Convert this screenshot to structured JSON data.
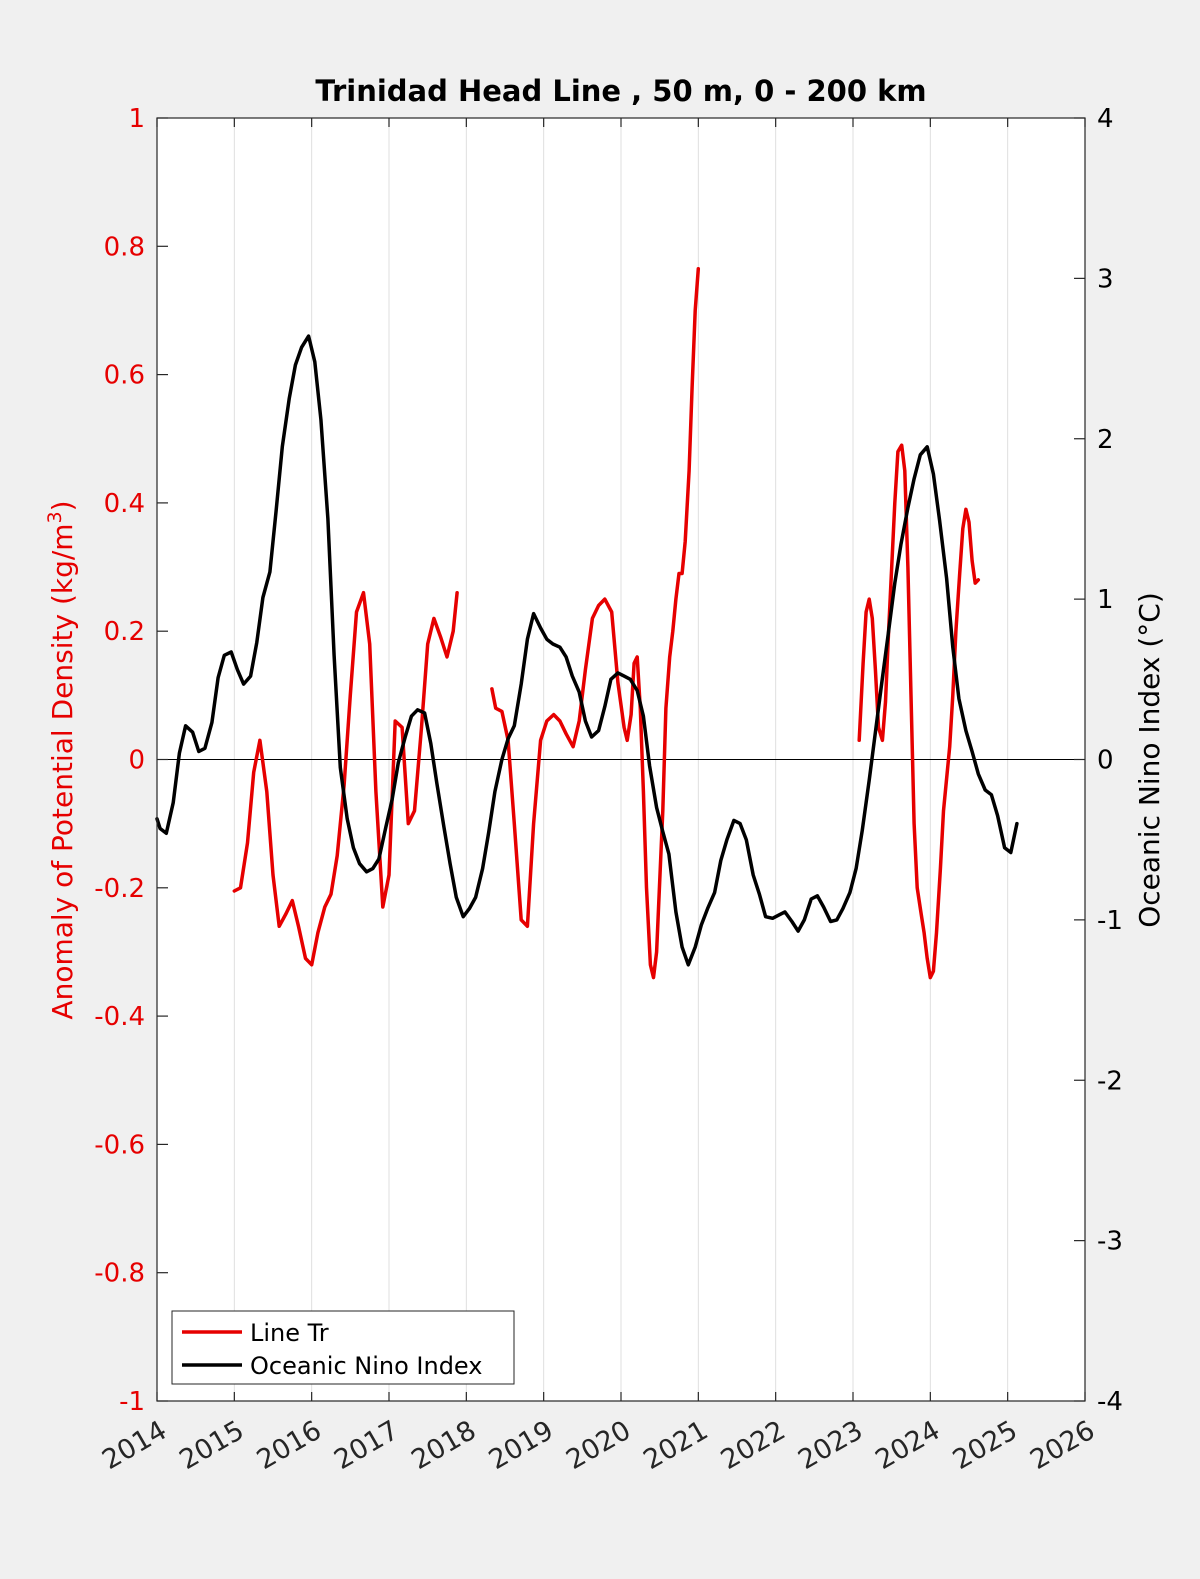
{
  "chart_data": {
    "type": "line",
    "title": "Trinidad Head Line , 50 m, 0 - 200 km",
    "xlabel": "",
    "xlim": [
      2014,
      2026
    ],
    "x_ticks": [
      "2014",
      "2015",
      "2016",
      "2017",
      "2018",
      "2019",
      "2020",
      "2021",
      "2022",
      "2023",
      "2024",
      "2025",
      "2026"
    ],
    "grid": "vertical",
    "zero_line": true,
    "left_axis": {
      "label_main": "Anomaly of Potential Density (kg/m",
      "label_sup": "3",
      "label_end": ")",
      "ylim": [
        -1,
        1
      ],
      "ticks": [
        "-1",
        "-0.8",
        "-0.6",
        "-0.4",
        "-0.2",
        "0",
        "0.2",
        "0.4",
        "0.6",
        "0.8",
        "1"
      ],
      "color": "#e60000"
    },
    "right_axis": {
      "label": "Oceanic Nino Index (°C)",
      "ylim": [
        -4,
        4
      ],
      "ticks": [
        "-4",
        "-3",
        "-2",
        "-1",
        "0",
        "1",
        "2",
        "3",
        "4"
      ],
      "color": "#000000"
    },
    "legend": {
      "placement": "bottom-left",
      "entries": [
        "Line Tr",
        "Oceanic Nino Index"
      ]
    },
    "series": [
      {
        "name": "Line Tr",
        "axis": "left",
        "color": "#e60000",
        "segments": [
          [
            [
              2015.0,
              -0.205
            ],
            [
              2015.08,
              -0.2
            ],
            [
              2015.17,
              -0.13
            ],
            [
              2015.25,
              -0.02
            ],
            [
              2015.33,
              0.03
            ],
            [
              2015.42,
              -0.05
            ],
            [
              2015.5,
              -0.18
            ],
            [
              2015.58,
              -0.26
            ],
            [
              2015.67,
              -0.24
            ],
            [
              2015.75,
              -0.22
            ],
            [
              2015.83,
              -0.26
            ],
            [
              2015.92,
              -0.31
            ],
            [
              2016.0,
              -0.32
            ],
            [
              2016.08,
              -0.27
            ],
            [
              2016.17,
              -0.23
            ],
            [
              2016.25,
              -0.21
            ],
            [
              2016.33,
              -0.15
            ],
            [
              2016.42,
              -0.04
            ],
            [
              2016.5,
              0.1
            ],
            [
              2016.58,
              0.23
            ],
            [
              2016.67,
              0.26
            ],
            [
              2016.75,
              0.18
            ],
            [
              2016.83,
              -0.05
            ],
            [
              2016.92,
              -0.23
            ],
            [
              2017.0,
              -0.18
            ],
            [
              2017.08,
              0.06
            ],
            [
              2017.17,
              0.05
            ],
            [
              2017.25,
              -0.1
            ],
            [
              2017.33,
              -0.08
            ],
            [
              2017.42,
              0.05
            ],
            [
              2017.5,
              0.18
            ],
            [
              2017.58,
              0.22
            ],
            [
              2017.67,
              0.19
            ],
            [
              2017.75,
              0.16
            ],
            [
              2017.83,
              0.2
            ],
            [
              2017.88,
              0.26
            ]
          ],
          [
            [
              2018.33,
              0.11
            ],
            [
              2018.38,
              0.08
            ],
            [
              2018.46,
              0.075
            ],
            [
              2018.54,
              0.03
            ],
            [
              2018.62,
              -0.1
            ],
            [
              2018.71,
              -0.25
            ],
            [
              2018.79,
              -0.26
            ],
            [
              2018.87,
              -0.1
            ],
            [
              2018.96,
              0.03
            ],
            [
              2019.04,
              0.06
            ],
            [
              2019.13,
              0.07
            ],
            [
              2019.21,
              0.06
            ],
            [
              2019.29,
              0.04
            ],
            [
              2019.38,
              0.02
            ],
            [
              2019.46,
              0.06
            ],
            [
              2019.54,
              0.14
            ],
            [
              2019.63,
              0.22
            ],
            [
              2019.71,
              0.24
            ],
            [
              2019.79,
              0.25
            ],
            [
              2019.88,
              0.23
            ],
            [
              2019.96,
              0.12
            ],
            [
              2020.04,
              0.05
            ],
            [
              2020.08,
              0.03
            ],
            [
              2020.13,
              0.07
            ],
            [
              2020.17,
              0.15
            ],
            [
              2020.21,
              0.16
            ],
            [
              2020.25,
              0.08
            ],
            [
              2020.29,
              -0.05
            ],
            [
              2020.33,
              -0.2
            ],
            [
              2020.38,
              -0.32
            ],
            [
              2020.42,
              -0.34
            ],
            [
              2020.46,
              -0.3
            ],
            [
              2020.54,
              -0.08
            ],
            [
              2020.58,
              0.08
            ],
            [
              2020.63,
              0.16
            ],
            [
              2020.67,
              0.2
            ],
            [
              2020.71,
              0.25
            ],
            [
              2020.75,
              0.29
            ],
            [
              2020.79,
              0.29
            ],
            [
              2020.83,
              0.34
            ],
            [
              2020.88,
              0.45
            ],
            [
              2020.92,
              0.58
            ],
            [
              2020.96,
              0.7
            ],
            [
              2021.0,
              0.765
            ]
          ],
          [
            [
              2023.08,
              0.03
            ],
            [
              2023.13,
              0.15
            ],
            [
              2023.17,
              0.23
            ],
            [
              2023.21,
              0.25
            ],
            [
              2023.25,
              0.22
            ],
            [
              2023.29,
              0.14
            ],
            [
              2023.33,
              0.05
            ],
            [
              2023.38,
              0.03
            ],
            [
              2023.42,
              0.09
            ],
            [
              2023.46,
              0.2
            ],
            [
              2023.5,
              0.3
            ],
            [
              2023.54,
              0.4
            ],
            [
              2023.58,
              0.48
            ],
            [
              2023.63,
              0.49
            ],
            [
              2023.67,
              0.45
            ],
            [
              2023.71,
              0.3
            ],
            [
              2023.75,
              0.1
            ],
            [
              2023.79,
              -0.1
            ],
            [
              2023.83,
              -0.2
            ],
            [
              2023.88,
              -0.24
            ],
            [
              2023.92,
              -0.27
            ],
            [
              2023.96,
              -0.31
            ],
            [
              2024.0,
              -0.34
            ],
            [
              2024.04,
              -0.33
            ],
            [
              2024.08,
              -0.27
            ],
            [
              2024.13,
              -0.17
            ],
            [
              2024.17,
              -0.08
            ],
            [
              2024.21,
              -0.03
            ],
            [
              2024.25,
              0.02
            ],
            [
              2024.29,
              0.1
            ],
            [
              2024.33,
              0.2
            ],
            [
              2024.38,
              0.29
            ],
            [
              2024.42,
              0.36
            ],
            [
              2024.46,
              0.39
            ],
            [
              2024.5,
              0.37
            ],
            [
              2024.54,
              0.31
            ],
            [
              2024.58,
              0.275
            ],
            [
              2024.62,
              0.28
            ]
          ]
        ]
      },
      {
        "name": "Oceanic Nino Index",
        "axis": "right",
        "color": "#000000",
        "points": [
          [
            2014.0,
            -0.37
          ],
          [
            2014.04,
            -0.43
          ],
          [
            2014.12,
            -0.46
          ],
          [
            2014.21,
            -0.27
          ],
          [
            2014.29,
            0.04
          ],
          [
            2014.37,
            0.21
          ],
          [
            2014.46,
            0.17
          ],
          [
            2014.54,
            0.05
          ],
          [
            2014.62,
            0.07
          ],
          [
            2014.71,
            0.23
          ],
          [
            2014.79,
            0.51
          ],
          [
            2014.87,
            0.65
          ],
          [
            2014.96,
            0.67
          ],
          [
            2015.04,
            0.56
          ],
          [
            2015.12,
            0.47
          ],
          [
            2015.21,
            0.52
          ],
          [
            2015.29,
            0.73
          ],
          [
            2015.37,
            1.01
          ],
          [
            2015.46,
            1.17
          ],
          [
            2015.54,
            1.55
          ],
          [
            2015.62,
            1.95
          ],
          [
            2015.71,
            2.25
          ],
          [
            2015.79,
            2.46
          ],
          [
            2015.87,
            2.57
          ],
          [
            2015.96,
            2.64
          ],
          [
            2016.04,
            2.48
          ],
          [
            2016.12,
            2.12
          ],
          [
            2016.21,
            1.5
          ],
          [
            2016.29,
            0.65
          ],
          [
            2016.37,
            -0.05
          ],
          [
            2016.46,
            -0.37
          ],
          [
            2016.54,
            -0.55
          ],
          [
            2016.62,
            -0.65
          ],
          [
            2016.71,
            -0.7
          ],
          [
            2016.79,
            -0.68
          ],
          [
            2016.87,
            -0.62
          ],
          [
            2016.96,
            -0.42
          ],
          [
            2017.04,
            -0.25
          ],
          [
            2017.12,
            -0.02
          ],
          [
            2017.21,
            0.14
          ],
          [
            2017.29,
            0.27
          ],
          [
            2017.37,
            0.31
          ],
          [
            2017.46,
            0.29
          ],
          [
            2017.54,
            0.1
          ],
          [
            2017.62,
            -0.15
          ],
          [
            2017.71,
            -0.42
          ],
          [
            2017.79,
            -0.65
          ],
          [
            2017.87,
            -0.86
          ],
          [
            2017.96,
            -0.98
          ],
          [
            2018.04,
            -0.93
          ],
          [
            2018.12,
            -0.86
          ],
          [
            2018.21,
            -0.68
          ],
          [
            2018.29,
            -0.45
          ],
          [
            2018.37,
            -0.2
          ],
          [
            2018.46,
            0.0
          ],
          [
            2018.54,
            0.13
          ],
          [
            2018.62,
            0.21
          ],
          [
            2018.71,
            0.47
          ],
          [
            2018.79,
            0.75
          ],
          [
            2018.87,
            0.91
          ],
          [
            2018.96,
            0.82
          ],
          [
            2019.04,
            0.75
          ],
          [
            2019.12,
            0.72
          ],
          [
            2019.21,
            0.7
          ],
          [
            2019.29,
            0.64
          ],
          [
            2019.37,
            0.52
          ],
          [
            2019.46,
            0.42
          ],
          [
            2019.54,
            0.24
          ],
          [
            2019.62,
            0.14
          ],
          [
            2019.71,
            0.18
          ],
          [
            2019.79,
            0.33
          ],
          [
            2019.87,
            0.5
          ],
          [
            2019.96,
            0.54
          ],
          [
            2020.04,
            0.52
          ],
          [
            2020.12,
            0.5
          ],
          [
            2020.21,
            0.43
          ],
          [
            2020.29,
            0.27
          ],
          [
            2020.37,
            -0.04
          ],
          [
            2020.46,
            -0.3
          ],
          [
            2020.54,
            -0.45
          ],
          [
            2020.62,
            -0.59
          ],
          [
            2020.71,
            -0.95
          ],
          [
            2020.79,
            -1.17
          ],
          [
            2020.87,
            -1.28
          ],
          [
            2020.96,
            -1.17
          ],
          [
            2021.04,
            -1.03
          ],
          [
            2021.12,
            -0.93
          ],
          [
            2021.21,
            -0.83
          ],
          [
            2021.29,
            -0.63
          ],
          [
            2021.37,
            -0.5
          ],
          [
            2021.46,
            -0.38
          ],
          [
            2021.54,
            -0.4
          ],
          [
            2021.62,
            -0.5
          ],
          [
            2021.71,
            -0.72
          ],
          [
            2021.79,
            -0.84
          ],
          [
            2021.87,
            -0.98
          ],
          [
            2021.96,
            -0.99
          ],
          [
            2022.04,
            -0.97
          ],
          [
            2022.12,
            -0.95
          ],
          [
            2022.21,
            -1.01
          ],
          [
            2022.29,
            -1.07
          ],
          [
            2022.37,
            -1.0
          ],
          [
            2022.46,
            -0.87
          ],
          [
            2022.54,
            -0.85
          ],
          [
            2022.62,
            -0.92
          ],
          [
            2022.71,
            -1.01
          ],
          [
            2022.79,
            -1.0
          ],
          [
            2022.87,
            -0.93
          ],
          [
            2022.96,
            -0.83
          ],
          [
            2023.04,
            -0.68
          ],
          [
            2023.12,
            -0.44
          ],
          [
            2023.21,
            -0.13
          ],
          [
            2023.29,
            0.17
          ],
          [
            2023.37,
            0.47
          ],
          [
            2023.46,
            0.8
          ],
          [
            2023.54,
            1.1
          ],
          [
            2023.62,
            1.34
          ],
          [
            2023.71,
            1.57
          ],
          [
            2023.79,
            1.75
          ],
          [
            2023.87,
            1.9
          ],
          [
            2023.96,
            1.95
          ],
          [
            2024.04,
            1.78
          ],
          [
            2024.12,
            1.49
          ],
          [
            2024.21,
            1.13
          ],
          [
            2024.29,
            0.7
          ],
          [
            2024.37,
            0.38
          ],
          [
            2024.46,
            0.18
          ],
          [
            2024.54,
            0.05
          ],
          [
            2024.62,
            -0.09
          ],
          [
            2024.71,
            -0.19
          ],
          [
            2024.79,
            -0.22
          ],
          [
            2024.87,
            -0.35
          ],
          [
            2024.96,
            -0.55
          ],
          [
            2025.04,
            -0.58
          ],
          [
            2025.12,
            -0.4
          ]
        ]
      }
    ]
  }
}
